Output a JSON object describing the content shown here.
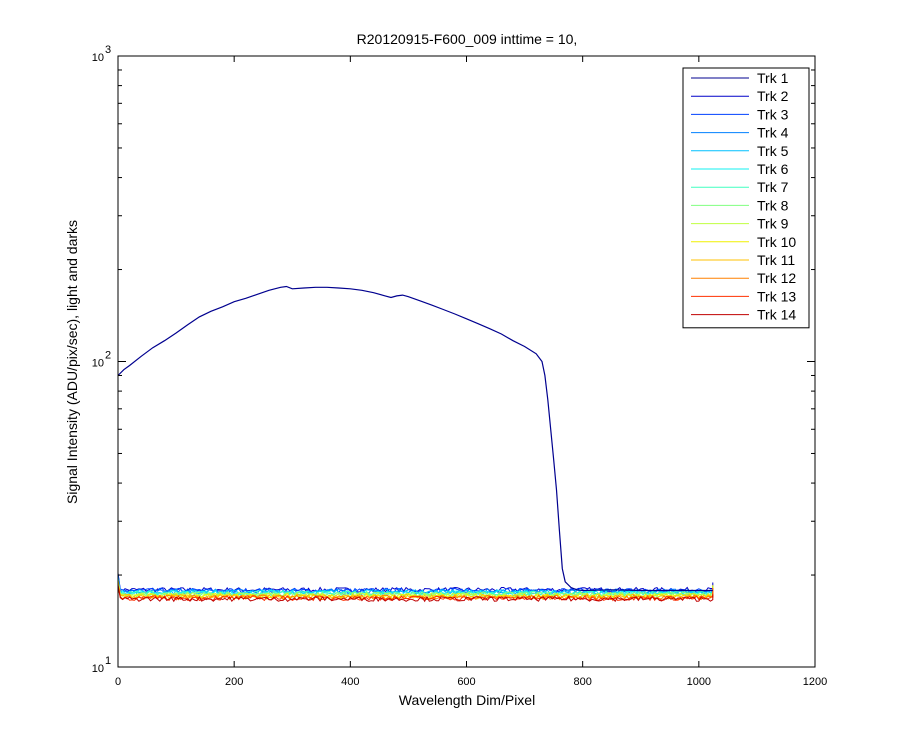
{
  "chart_data": {
    "type": "line",
    "title": "R20120915-F600_009 inttime = 10,",
    "xlabel": "Wavelength Dim/Pixel",
    "ylabel": "Signal Intensity (ADU/pix/sec), light and darks",
    "xlim": [
      0,
      1200
    ],
    "ylim": [
      10,
      1000
    ],
    "yscale": "log",
    "grid": false,
    "legend_position": "top-right",
    "x_ticks": [
      0,
      200,
      400,
      600,
      800,
      1000,
      1200
    ],
    "x_tick_labels": [
      "0",
      "200",
      "400",
      "600",
      "800",
      "1000",
      "1200"
    ],
    "y_ticks": [
      {
        "value": 10,
        "base": "10",
        "exp": "1"
      },
      {
        "value": 100,
        "base": "10",
        "exp": "2"
      },
      {
        "value": 1000,
        "base": "10",
        "exp": "3"
      }
    ],
    "series": [
      {
        "name": "Trk 1",
        "color": "#00008f",
        "x": [
          0,
          10,
          20,
          40,
          60,
          80,
          100,
          120,
          140,
          160,
          180,
          200,
          220,
          240,
          260,
          280,
          290,
          300,
          320,
          340,
          360,
          380,
          400,
          420,
          440,
          460,
          470,
          480,
          490,
          500,
          520,
          540,
          560,
          580,
          600,
          620,
          640,
          660,
          680,
          700,
          720,
          730,
          735,
          740,
          745,
          750,
          755,
          760,
          765,
          770,
          780,
          790,
          800,
          850,
          900,
          1024
        ],
        "y": [
          90,
          94,
          97,
          104,
          111,
          117,
          124,
          132,
          140,
          146,
          151,
          157,
          161,
          166,
          171,
          175,
          176,
          173,
          174,
          175,
          175,
          174,
          173,
          171,
          168,
          164,
          162,
          164,
          165,
          163,
          158,
          153,
          148,
          143,
          138,
          133,
          128,
          123,
          117,
          112,
          106,
          100,
          90,
          75,
          60,
          48,
          38,
          28,
          21,
          19,
          18.2,
          17.9,
          17.8,
          17.9,
          17.8,
          17.8
        ]
      },
      {
        "name": "Trk 2",
        "color": "#0000c8",
        "x": [
          0,
          1024
        ],
        "y": [
          17.9,
          17.9
        ]
      },
      {
        "name": "Trk 3",
        "color": "#0040ff",
        "x": [
          0,
          1024
        ],
        "y": [
          17.8,
          17.8
        ]
      },
      {
        "name": "Trk 4",
        "color": "#0080ff",
        "x": [
          0,
          1024
        ],
        "y": [
          17.7,
          17.7
        ]
      },
      {
        "name": "Trk 5",
        "color": "#00c0ff",
        "x": [
          0,
          1024
        ],
        "y": [
          17.6,
          17.6
        ]
      },
      {
        "name": "Trk 6",
        "color": "#10f0f0",
        "x": [
          0,
          1024
        ],
        "y": [
          17.5,
          17.5
        ]
      },
      {
        "name": "Trk 7",
        "color": "#40ffc0",
        "x": [
          0,
          1024
        ],
        "y": [
          17.4,
          17.4
        ]
      },
      {
        "name": "Trk 8",
        "color": "#80ff80",
        "x": [
          0,
          1024
        ],
        "y": [
          17.3,
          17.3
        ]
      },
      {
        "name": "Trk 9",
        "color": "#c0ff40",
        "x": [
          0,
          1024
        ],
        "y": [
          17.2,
          17.2
        ]
      },
      {
        "name": "Trk 10",
        "color": "#f0f000",
        "x": [
          0,
          1024
        ],
        "y": [
          17.1,
          17.1
        ]
      },
      {
        "name": "Trk 11",
        "color": "#ffc000",
        "x": [
          0,
          1024
        ],
        "y": [
          17.0,
          17.0
        ]
      },
      {
        "name": "Trk 12",
        "color": "#ff8000",
        "x": [
          0,
          1024
        ],
        "y": [
          16.9,
          16.9
        ]
      },
      {
        "name": "Trk 13",
        "color": "#ff3000",
        "x": [
          0,
          1024
        ],
        "y": [
          16.8,
          16.8
        ]
      },
      {
        "name": "Trk 14",
        "color": "#c00000",
        "x": [
          0,
          1024
        ],
        "y": [
          16.7,
          16.7
        ]
      }
    ]
  }
}
